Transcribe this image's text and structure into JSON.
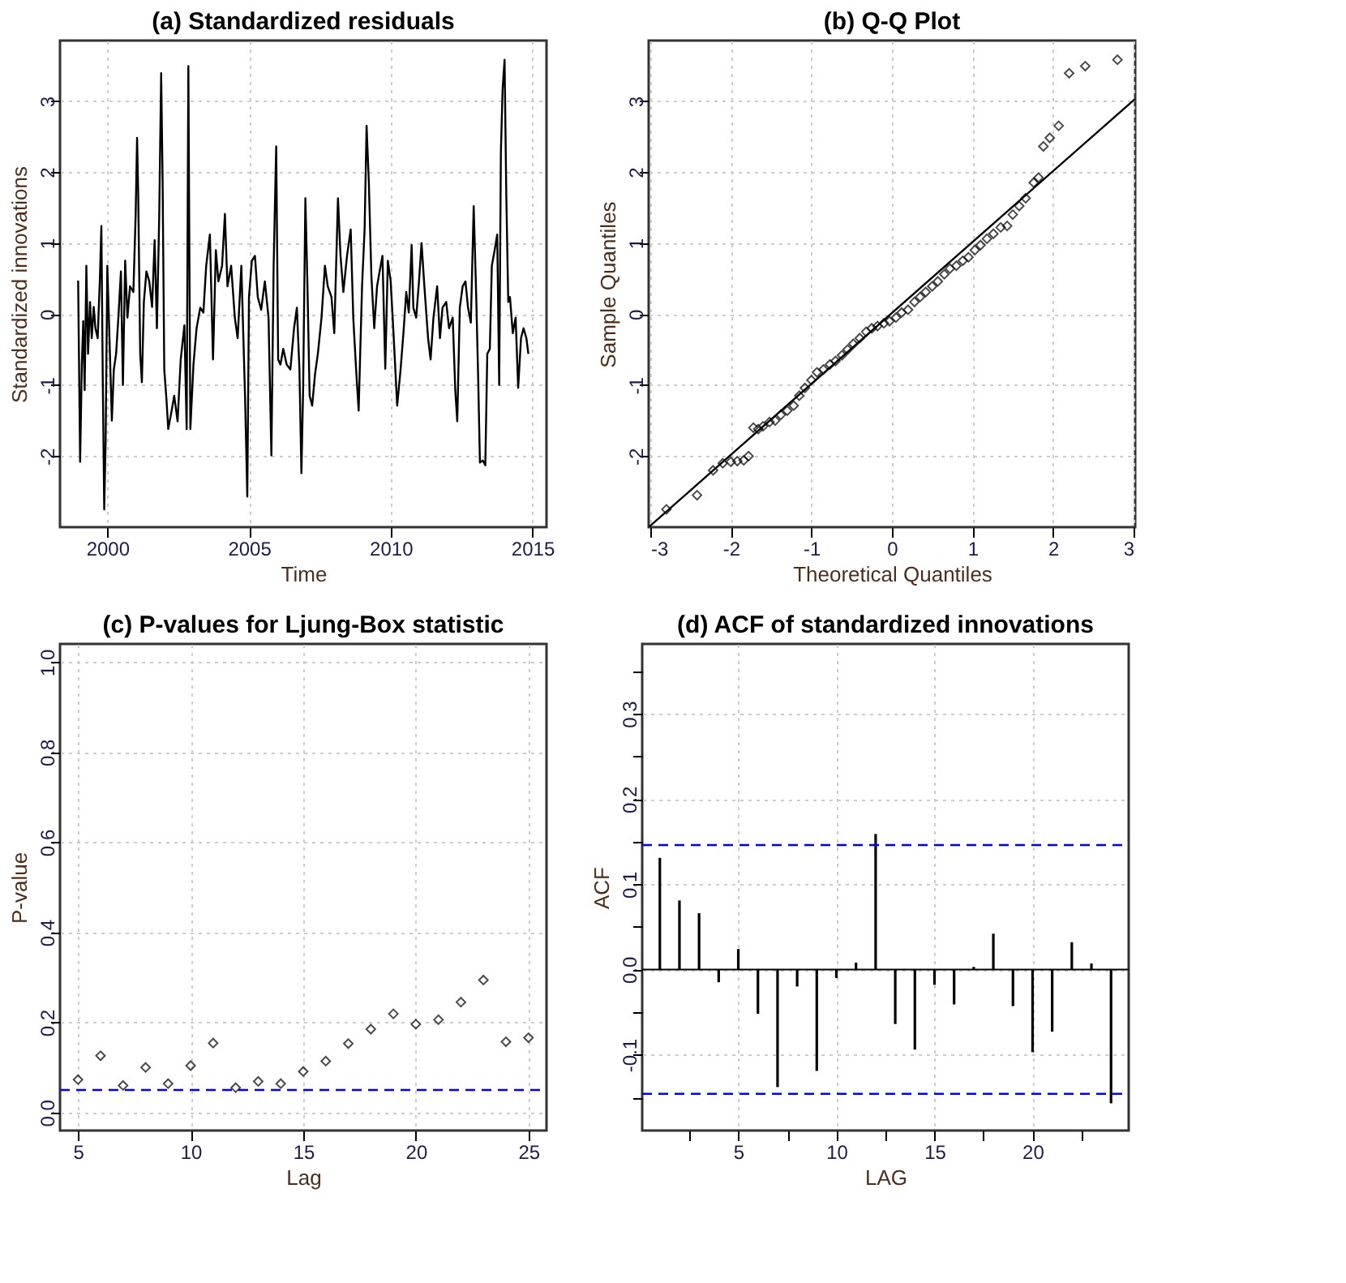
{
  "chart_data": [
    {
      "type": "line",
      "title": "(a) Standardized residuals",
      "xlabel": "Time",
      "ylabel": "Standardized innovations",
      "grid": true,
      "line_style": "solid",
      "xlim": [
        1998.33,
        2015.5
      ],
      "ylim": [
        -3.0,
        3.85
      ],
      "xticks": [
        2000,
        2005,
        2010,
        2015
      ],
      "yticks": [
        -2,
        -1,
        0,
        1,
        2,
        3
      ],
      "series": [
        {
          "color": "#000000",
          "x": [
            1998.97,
            1999.04,
            1999.1,
            1999.15,
            1999.2,
            1999.26,
            1999.32,
            1999.39,
            1999.45,
            1999.52,
            1999.58,
            1999.66,
            1999.74,
            1999.79,
            1999.84,
            1999.89,
            1999.94,
            2000.0,
            2000.06,
            2000.16,
            2000.23,
            2000.31,
            2000.39,
            2000.48,
            2000.55,
            2000.63,
            2000.71,
            2000.8,
            2000.92,
            2001.0,
            2001.05,
            2001.09,
            2001.16,
            2001.22,
            2001.29,
            2001.38,
            2001.48,
            2001.58,
            2001.67,
            2001.75,
            2001.83,
            2001.9,
            2001.95,
            2002.01,
            2002.09,
            2002.15,
            2002.27,
            2002.36,
            2002.48,
            2002.59,
            2002.72,
            2002.8,
            2002.86,
            2002.93,
            2003.04,
            2003.15,
            2003.28,
            2003.39,
            2003.49,
            2003.62,
            2003.73,
            2003.83,
            2003.92,
            2004.05,
            2004.15,
            2004.24,
            2004.37,
            2004.5,
            2004.6,
            2004.73,
            2004.86,
            2004.94,
            2005.0,
            2005.1,
            2005.21,
            2005.31,
            2005.43,
            2005.56,
            2005.69,
            2005.79,
            2005.87,
            2005.96,
            2006.03,
            2006.11,
            2006.21,
            2006.33,
            2006.46,
            2006.59,
            2006.69,
            2006.78,
            2006.85,
            2006.91,
            2006.99,
            2007.06,
            2007.14,
            2007.23,
            2007.33,
            2007.43,
            2007.56,
            2007.68,
            2007.78,
            2007.91,
            2008.01,
            2008.14,
            2008.23,
            2008.33,
            2008.46,
            2008.59,
            2008.68,
            2008.78,
            2008.87,
            2008.99,
            2009.08,
            2009.15,
            2009.23,
            2009.32,
            2009.42,
            2009.52,
            2009.61,
            2009.71,
            2009.81,
            2009.9,
            2010.0,
            2010.1,
            2010.23,
            2010.35,
            2010.45,
            2010.55,
            2010.64,
            2010.74,
            2010.8,
            2010.9,
            2011.0,
            2011.09,
            2011.19,
            2011.32,
            2011.41,
            2011.51,
            2011.64,
            2011.74,
            2011.83,
            2011.96,
            2012.06,
            2012.19,
            2012.28,
            2012.35,
            2012.44,
            2012.54,
            2012.64,
            2012.73,
            2012.83,
            2012.93,
            2013.02,
            2013.09,
            2013.15,
            2013.25,
            2013.34,
            2013.41,
            2013.5,
            2013.57,
            2013.67,
            2013.76,
            2013.83,
            2013.89,
            2013.95,
            2014.02,
            2014.08,
            2014.15,
            2014.21,
            2014.31,
            2014.41,
            2014.5,
            2014.6,
            2014.69,
            2014.79,
            2014.86
          ],
          "values": [
            0.47,
            -2.08,
            -0.71,
            -0.1,
            -1.07,
            0.68,
            -0.56,
            0.17,
            -0.34,
            0.1,
            -0.2,
            -0.34,
            0.53,
            1.24,
            -0.93,
            -2.75,
            -1.8,
            0.68,
            -0.12,
            -1.5,
            -0.78,
            -0.56,
            -0.05,
            0.6,
            -1.0,
            0.75,
            -0.05,
            0.39,
            0.31,
            1.4,
            2.48,
            1.7,
            -0.56,
            -0.96,
            0.17,
            0.6,
            0.46,
            0.1,
            1.04,
            -0.2,
            1.34,
            3.39,
            1.92,
            -0.78,
            -1.22,
            -1.62,
            -1.36,
            -1.15,
            -1.51,
            -0.64,
            -0.16,
            -1.62,
            3.49,
            -1.62,
            -0.71,
            -0.2,
            0.09,
            0.02,
            0.68,
            1.12,
            -0.64,
            0.9,
            0.46,
            0.68,
            1.41,
            0.39,
            0.68,
            -0.05,
            -0.34,
            0.68,
            -1.15,
            -2.57,
            0.24,
            0.75,
            0.82,
            0.24,
            0.06,
            0.46,
            -0.05,
            -1.99,
            0.68,
            2.36,
            -0.64,
            -0.71,
            -0.49,
            -0.71,
            -0.78,
            -0.2,
            0.09,
            -0.78,
            -2.24,
            -1.07,
            1.63,
            0.46,
            -1.15,
            -1.29,
            -0.85,
            -0.56,
            -0.05,
            0.68,
            0.39,
            0.24,
            -0.27,
            1.63,
            0.82,
            0.31,
            0.82,
            1.19,
            -0.05,
            -0.78,
            -1.36,
            0.39,
            1.19,
            2.65,
            1.85,
            0.53,
            -0.2,
            0.39,
            0.6,
            0.82,
            -0.77,
            0.75,
            0.46,
            -0.27,
            -1.29,
            -0.78,
            -0.27,
            0.31,
            0.02,
            0.97,
            0.09,
            -0.05,
            0.46,
            1.0,
            0.39,
            -0.34,
            -0.64,
            -0.05,
            0.39,
            -0.34,
            0.09,
            0.17,
            -0.2,
            -0.05,
            -1.07,
            -1.51,
            0.09,
            0.39,
            0.46,
            0.09,
            -0.12,
            1.52,
            0.24,
            -0.93,
            -2.09,
            -2.06,
            -2.13,
            -0.56,
            -0.49,
            0.68,
            0.9,
            1.12,
            -1.0,
            2.28,
            3.16,
            3.58,
            1.7,
            0.17,
            0.24,
            -0.27,
            -0.05,
            -1.04,
            -0.34,
            -0.2,
            -0.34,
            -0.56
          ]
        }
      ]
    },
    {
      "type": "scatter",
      "title": "(b) Q-Q Plot",
      "xlabel": "Theoretical Quantiles",
      "ylabel": "Sample Quantiles",
      "grid": true,
      "xlim": [
        -3.02,
        3.02
      ],
      "ylim": [
        -3.0,
        3.85
      ],
      "xticks": [
        -3,
        -2,
        -1,
        0,
        1,
        2,
        3
      ],
      "yticks": [
        -2,
        -1,
        0,
        1,
        2,
        3
      ],
      "series": [
        {
          "type": "scatter",
          "color": "#000000",
          "marker": "diamond",
          "x": [
            -2.8,
            -2.42,
            -2.22,
            -2.1,
            -2.0,
            -1.92,
            -1.84,
            -1.78,
            -1.72,
            -1.66,
            -1.6,
            -1.52,
            -1.45,
            -1.38,
            -1.3,
            -1.22,
            -1.15,
            -1.08,
            -1.0,
            -0.93,
            -0.85,
            -0.77,
            -0.7,
            -0.62,
            -0.55,
            -0.48,
            -0.4,
            -0.32,
            -0.25,
            -0.18,
            -0.1,
            -0.03,
            0.05,
            0.12,
            0.2,
            0.28,
            0.35,
            0.42,
            0.5,
            0.57,
            0.65,
            0.72,
            0.8,
            0.88,
            0.95,
            1.03,
            1.1,
            1.18,
            1.26,
            1.35,
            1.43,
            1.5,
            1.58,
            1.66,
            1.76,
            1.82,
            1.88,
            1.96,
            2.07,
            2.2,
            2.4,
            2.8
          ],
          "values": [
            -2.75,
            -2.55,
            -2.2,
            -2.1,
            -2.08,
            -2.07,
            -2.06,
            -2.0,
            -1.6,
            -1.62,
            -1.58,
            -1.52,
            -1.5,
            -1.42,
            -1.36,
            -1.29,
            -1.15,
            -1.04,
            -0.93,
            -0.82,
            -0.78,
            -0.71,
            -0.66,
            -0.58,
            -0.5,
            -0.42,
            -0.34,
            -0.25,
            -0.2,
            -0.17,
            -0.13,
            -0.1,
            -0.05,
            0.02,
            0.06,
            0.17,
            0.24,
            0.31,
            0.39,
            0.46,
            0.56,
            0.64,
            0.68,
            0.75,
            0.8,
            0.9,
            0.97,
            1.06,
            1.13,
            1.22,
            1.24,
            1.4,
            1.52,
            1.63,
            1.85,
            1.92,
            2.36,
            2.48,
            2.65,
            3.39,
            3.49,
            3.58
          ]
        },
        {
          "type": "line",
          "color": "#000000",
          "line_style": "solid",
          "x": [
            -3.02,
            3.02
          ],
          "values": [
            -3.0,
            3.03
          ]
        }
      ]
    },
    {
      "type": "scatter",
      "title": "(c) P-values for Ljung-Box statistic",
      "xlabel": "Lag",
      "ylabel": "P-value",
      "grid": true,
      "marker": "diamond",
      "xlim": [
        4.2,
        25.8
      ],
      "ylim": [
        -0.04,
        1.04
      ],
      "xticks": [
        5,
        10,
        15,
        20,
        25
      ],
      "yticks": [
        {
          "value": 0,
          "label": "0.0"
        },
        {
          "value": 0.2,
          "label": "0.2"
        },
        {
          "value": 0.4,
          "label": "0.4"
        },
        {
          "value": 0.6,
          "label": "0.6"
        },
        {
          "value": 0.8,
          "label": "0.8"
        },
        {
          "value": 1,
          "label": "1.0"
        }
      ],
      "series": [
        {
          "color": "#000000",
          "x": [
            5,
            6,
            7,
            8,
            9,
            10,
            11,
            12,
            13,
            14,
            15,
            16,
            17,
            18,
            19,
            20,
            21,
            22,
            23,
            24,
            25
          ],
          "values": [
            0.073,
            0.126,
            0.06,
            0.1,
            0.064,
            0.104,
            0.154,
            0.055,
            0.069,
            0.064,
            0.091,
            0.114,
            0.153,
            0.185,
            0.219,
            0.196,
            0.206,
            0.245,
            0.294,
            0.157,
            0.166
          ]
        }
      ],
      "ref_lines": [
        {
          "axis": "y",
          "value": 0.05,
          "color": "#0000ff",
          "line_style": "dashed"
        }
      ]
    },
    {
      "type": "bar",
      "title": "(d) ACF of standardized innovations",
      "xlabel": "LAG",
      "ylabel": "ACF",
      "grid": true,
      "xlim": [
        0.1,
        24.9
      ],
      "ylim": [
        -0.189,
        0.382
      ],
      "xticks": [
        {
          "value": 2.5,
          "label": null
        },
        5,
        {
          "value": 7.5,
          "label": null
        },
        10,
        {
          "value": 12.5,
          "label": null
        },
        15,
        {
          "value": 17.5,
          "label": null
        },
        20,
        {
          "value": 22.5,
          "label": null
        }
      ],
      "yticks": [
        {
          "value": -0.15,
          "label": null
        },
        {
          "value": -0.1,
          "label": "-0.1"
        },
        {
          "value": -0.05,
          "label": null
        },
        {
          "value": 0,
          "label": "0.0"
        },
        {
          "value": 0.05,
          "label": null
        },
        {
          "value": 0.1,
          "label": "0.1"
        },
        {
          "value": 0.15,
          "label": null
        },
        {
          "value": 0.2,
          "label": "0.2"
        },
        {
          "value": 0.25,
          "label": null
        },
        {
          "value": 0.3,
          "label": "0.3"
        },
        {
          "value": 0.35,
          "label": null
        }
      ],
      "series": [
        {
          "color": "#000000",
          "x": [
            1,
            2,
            3,
            4,
            5,
            6,
            7,
            8,
            9,
            10,
            11,
            12,
            13,
            14,
            15,
            16,
            17,
            18,
            19,
            20,
            21,
            22,
            23,
            24
          ],
          "values": [
            0.131,
            0.081,
            0.066,
            -0.015,
            0.024,
            -0.052,
            -0.138,
            -0.02,
            -0.119,
            -0.01,
            0.008,
            0.159,
            -0.064,
            -0.094,
            -0.018,
            -0.041,
            0.003,
            0.042,
            -0.043,
            -0.097,
            -0.073,
            0.032,
            0.007,
            -0.157
          ]
        }
      ],
      "ref_lines": [
        {
          "axis": "y",
          "value": 0.146,
          "color": "#0000ff",
          "line_style": "dashed"
        },
        {
          "axis": "y",
          "value": -0.146,
          "color": "#0000ff",
          "line_style": "dashed"
        }
      ]
    }
  ]
}
